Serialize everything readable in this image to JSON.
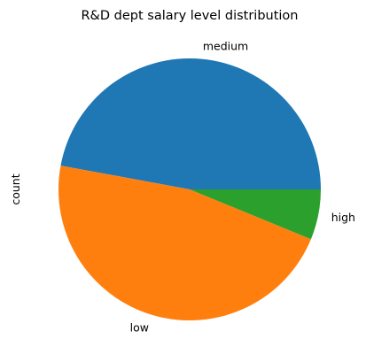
{
  "chart_data": {
    "type": "pie",
    "title": "R&D dept salary level distribution",
    "ylabel": "count",
    "start_angle_deg": 0,
    "direction": "counterclockwise",
    "slices": [
      {
        "label": "medium",
        "value": 372,
        "color": "#1f77b4"
      },
      {
        "label": "low",
        "value": 369,
        "color": "#ff7f0e"
      },
      {
        "label": "high",
        "value": 49,
        "color": "#2ca02c"
      }
    ],
    "legend": "none"
  }
}
